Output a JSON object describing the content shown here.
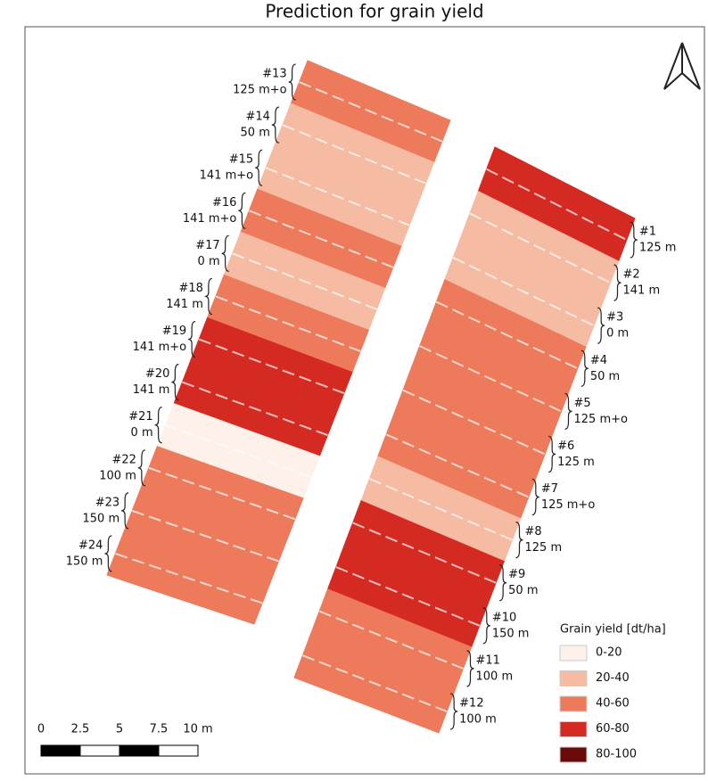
{
  "title": "Prediction for grain yield",
  "plots": [
    {
      "id": "#1",
      "treatment": "125 m"
    },
    {
      "id": "#2",
      "treatment": "141 m"
    },
    {
      "id": "#3",
      "treatment": "0 m"
    },
    {
      "id": "#4",
      "treatment": "50 m"
    },
    {
      "id": "#5",
      "treatment": "125 m+o"
    },
    {
      "id": "#6",
      "treatment": "125 m"
    },
    {
      "id": "#7",
      "treatment": "125 m+o"
    },
    {
      "id": "#8",
      "treatment": "125 m"
    },
    {
      "id": "#9",
      "treatment": "50 m"
    },
    {
      "id": "#10",
      "treatment": "150 m"
    },
    {
      "id": "#11",
      "treatment": "100 m"
    },
    {
      "id": "#12",
      "treatment": "100 m"
    },
    {
      "id": "#13",
      "treatment": "125 m+o"
    },
    {
      "id": "#14",
      "treatment": "50 m"
    },
    {
      "id": "#15",
      "treatment": "141 m+o"
    },
    {
      "id": "#16",
      "treatment": "141 m+o"
    },
    {
      "id": "#17",
      "treatment": "0 m"
    },
    {
      "id": "#18",
      "treatment": "141 m"
    },
    {
      "id": "#19",
      "treatment": "141 m+o"
    },
    {
      "id": "#20",
      "treatment": "141 m"
    },
    {
      "id": "#21",
      "treatment": "0 m"
    },
    {
      "id": "#22",
      "treatment": "100 m"
    },
    {
      "id": "#23",
      "treatment": "150 m"
    },
    {
      "id": "#24",
      "treatment": "150 m"
    }
  ],
  "legend": {
    "title": "Grain yield [dt/ha]",
    "items": [
      {
        "label": "0-20",
        "color": "#fdf1ea"
      },
      {
        "label": "20-40",
        "color": "#f6bba3"
      },
      {
        "label": "40-60",
        "color": "#ee7a5c"
      },
      {
        "label": "60-80",
        "color": "#d52a22"
      },
      {
        "label": "80-100",
        "color": "#6b0a0a"
      }
    ]
  },
  "scale_bar": {
    "labels": [
      "0",
      "2.5",
      "5",
      "7.5",
      "10 m"
    ]
  }
}
